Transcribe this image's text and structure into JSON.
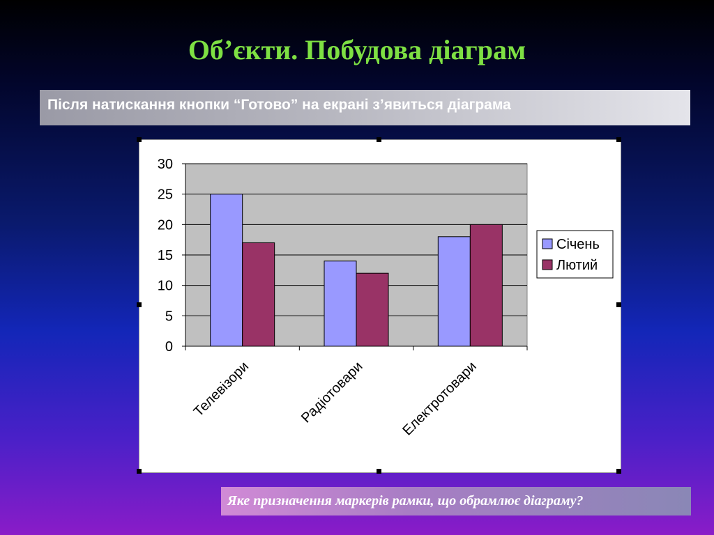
{
  "slide": {
    "title": "Об’єкти. Побудова діаграм",
    "subtitle": "Після натискання кнопки “Готово” на екрані з’явиться діаграма",
    "question": "Яке призначення маркерів рамки, що обрамлює діаграму?"
  },
  "chart_data": {
    "type": "bar",
    "title": "",
    "xlabel": "",
    "ylabel": "",
    "categories": [
      "Телевізори",
      "Радіотовари",
      "Електротовари"
    ],
    "series": [
      {
        "name": "Січень",
        "values": [
          25,
          14,
          18
        ],
        "color": "#9999ff"
      },
      {
        "name": "Лютий",
        "values": [
          17,
          12,
          20
        ],
        "color": "#993366"
      }
    ],
    "ylim": [
      0,
      30
    ],
    "yticks": [
      "0",
      "5",
      "10",
      "15",
      "20",
      "25",
      "30"
    ],
    "grid": true,
    "plot_background": "#c0c0c0",
    "legend_position": "right"
  },
  "colors": {
    "title": "#7ee043",
    "text": "#ffffff"
  }
}
